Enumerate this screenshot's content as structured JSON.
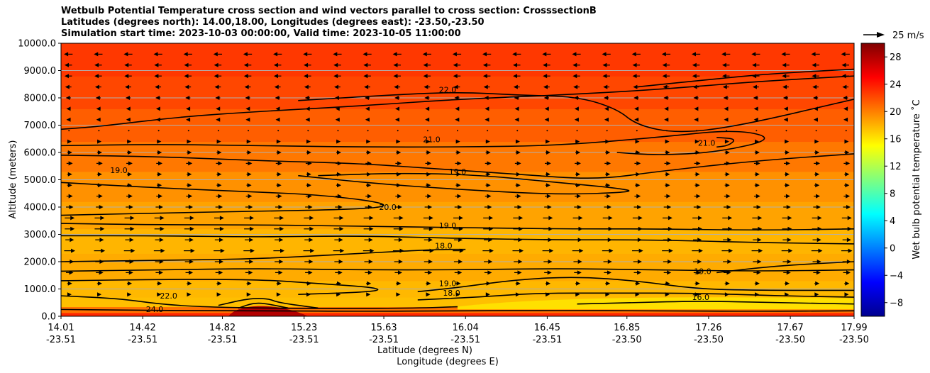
{
  "chart_data": {
    "type": "heatmap",
    "title_lines": [
      "Wetbulb Potential Temperature cross section and wind vectors parallel to cross section: CrosssectionB",
      "Latitudes (degrees north): 14.00,18.00, Longitudes (degrees east): -23.50,-23.50",
      "Simulation start time: 2023-10-03 00:00:00, Valid time: 2023-10-05 11:00:00"
    ],
    "ylabel": "Altitude (meters)",
    "xlabel": "Latitude (degrees N)",
    "xlabel2": "Longitude (degrees E)",
    "ylim": [
      0,
      10000
    ],
    "xlim": [
      14.01,
      17.99
    ],
    "yticks": [
      {
        "v": 0,
        "label": "0.0"
      },
      {
        "v": 1000,
        "label": "1000.0"
      },
      {
        "v": 2000,
        "label": "2000.0"
      },
      {
        "v": 3000,
        "label": "3000.0"
      },
      {
        "v": 4000,
        "label": "4000.0"
      },
      {
        "v": 5000,
        "label": "5000.0"
      },
      {
        "v": 6000,
        "label": "6000.0"
      },
      {
        "v": 7000,
        "label": "7000.0"
      },
      {
        "v": 8000,
        "label": "8000.0"
      },
      {
        "v": 9000,
        "label": "9000.0"
      },
      {
        "v": 10000,
        "label": "10000.0"
      }
    ],
    "xticks": [
      {
        "v": 14.01,
        "lat": "14.01",
        "lon": "-23.51"
      },
      {
        "v": 14.42,
        "lat": "14.42",
        "lon": "-23.51"
      },
      {
        "v": 14.82,
        "lat": "14.82",
        "lon": "-23.51"
      },
      {
        "v": 15.23,
        "lat": "15.23",
        "lon": "-23.51"
      },
      {
        "v": 15.63,
        "lat": "15.63",
        "lon": "-23.51"
      },
      {
        "v": 16.04,
        "lat": "16.04",
        "lon": "-23.51"
      },
      {
        "v": 16.45,
        "lat": "16.45",
        "lon": "-23.51"
      },
      {
        "v": 16.85,
        "lat": "16.85",
        "lon": "-23.50"
      },
      {
        "v": 17.26,
        "lat": "17.26",
        "lon": "-23.50"
      },
      {
        "v": 17.67,
        "lat": "17.67",
        "lon": "-23.50"
      },
      {
        "v": 17.99,
        "lat": "17.99",
        "lon": "-23.50"
      }
    ],
    "grid": "horizontal",
    "colorbar": {
      "label": "Wet bulb potential temperature ˚C",
      "range": [
        -10,
        30
      ],
      "ticks": [
        {
          "v": 28,
          "label": "28"
        },
        {
          "v": 24,
          "label": "24"
        },
        {
          "v": 20,
          "label": "20"
        },
        {
          "v": 16,
          "label": "16"
        },
        {
          "v": 12,
          "label": "12"
        },
        {
          "v": 8,
          "label": "8"
        },
        {
          "v": 4,
          "label": "4"
        },
        {
          "v": 0,
          "label": "0"
        },
        {
          "v": -4,
          "label": "−4"
        },
        {
          "v": -8,
          "label": "−8"
        }
      ]
    },
    "quiver_key": "25 m/s",
    "field_bands": [
      {
        "value": 23.5,
        "y0": 0,
        "y1": 130
      },
      {
        "value": 20.5,
        "y0": 130,
        "y1": 350
      },
      {
        "value": 17.5,
        "y0": 350,
        "y1": 700
      },
      {
        "value": 17.8,
        "y0": 700,
        "y1": 1300
      },
      {
        "value": 18.3,
        "y0": 1300,
        "y1": 2300
      },
      {
        "value": 17.9,
        "y0": 2300,
        "y1": 3200
      },
      {
        "value": 18.6,
        "y0": 3200,
        "y1": 4200
      },
      {
        "value": 19.3,
        "y0": 4200,
        "y1": 5300
      },
      {
        "value": 20.3,
        "y0": 5300,
        "y1": 6400
      },
      {
        "value": 21.3,
        "y0": 6400,
        "y1": 7600
      },
      {
        "value": 22.2,
        "y0": 7600,
        "y1": 8800
      },
      {
        "value": 22.8,
        "y0": 8800,
        "y1": 10000
      }
    ],
    "contours": [
      {
        "label": "",
        "points": [
          [
            14.01,
            6850
          ],
          [
            14.2,
            6950
          ],
          [
            14.6,
            7300
          ],
          [
            15.0,
            7500
          ],
          [
            15.5,
            7700
          ],
          [
            16.0,
            7950
          ],
          [
            16.5,
            8100
          ],
          [
            17.0,
            8300
          ],
          [
            17.5,
            8600
          ],
          [
            17.99,
            8800
          ]
        ]
      },
      {
        "label": "22.0",
        "label_at": [
          15.95,
          8200
        ],
        "points": [
          [
            15.2,
            7900
          ],
          [
            15.6,
            8080
          ],
          [
            16.0,
            8220
          ],
          [
            16.3,
            8100
          ],
          [
            16.6,
            8050
          ],
          [
            16.8,
            7600
          ],
          [
            16.9,
            7000
          ],
          [
            17.1,
            6700
          ],
          [
            17.4,
            6950
          ],
          [
            17.99,
            7950
          ]
        ]
      },
      {
        "label": "",
        "points": [
          [
            16.9,
            8400
          ],
          [
            17.3,
            8700
          ],
          [
            17.6,
            8900
          ],
          [
            17.99,
            9050
          ]
        ]
      },
      {
        "label": "21.0",
        "label_at": [
          15.87,
          6380
        ],
        "points": [
          [
            14.01,
            6250
          ],
          [
            14.5,
            6300
          ],
          [
            15.0,
            6250
          ],
          [
            15.5,
            6200
          ],
          [
            16.0,
            6200
          ],
          [
            16.5,
            6250
          ],
          [
            17.0,
            6550
          ],
          [
            17.4,
            6850
          ],
          [
            17.6,
            6500
          ],
          [
            17.3,
            6000
          ],
          [
            17.0,
            5900
          ],
          [
            16.8,
            6000
          ]
        ]
      },
      {
        "label": "21.0",
        "label_at": [
          17.25,
          6250
        ],
        "points": [
          [
            17.3,
            6200
          ],
          [
            17.36,
            6250
          ],
          [
            17.4,
            6500
          ],
          [
            17.3,
            6550
          ]
        ]
      },
      {
        "label": "19.0",
        "label_at": [
          14.3,
          5250
        ],
        "points": [
          [
            14.01,
            5900
          ],
          [
            14.5,
            5850
          ],
          [
            15.0,
            5700
          ],
          [
            15.5,
            5600
          ],
          [
            15.9,
            5400
          ],
          [
            16.3,
            5200
          ],
          [
            16.7,
            5000
          ],
          [
            17.0,
            5300
          ],
          [
            17.5,
            5700
          ],
          [
            17.99,
            5950
          ]
        ]
      },
      {
        "label": "19.0",
        "label_at": [
          16.0,
          5200
        ],
        "points": [
          [
            15.3,
            5150
          ],
          [
            15.7,
            5250
          ],
          [
            16.1,
            5180
          ],
          [
            16.5,
            4900
          ],
          [
            16.8,
            4700
          ],
          [
            16.9,
            4550
          ],
          [
            16.5,
            4450
          ],
          [
            16.0,
            4650
          ],
          [
            15.6,
            4850
          ],
          [
            15.2,
            5150
          ]
        ]
      },
      {
        "label": "20.0",
        "label_at": [
          15.65,
          3900
        ],
        "points": [
          [
            14.01,
            4900
          ],
          [
            14.5,
            4700
          ],
          [
            15.0,
            4550
          ],
          [
            15.3,
            4450
          ],
          [
            15.6,
            4200
          ],
          [
            15.65,
            4000
          ],
          [
            15.4,
            3900
          ],
          [
            15.0,
            3850
          ],
          [
            14.5,
            3780
          ],
          [
            14.01,
            3700
          ]
        ]
      },
      {
        "label": "19.0",
        "label_at": [
          15.95,
          3220
        ],
        "points": [
          [
            14.01,
            3400
          ],
          [
            14.5,
            3350
          ],
          [
            15.0,
            3350
          ],
          [
            15.5,
            3300
          ],
          [
            16.0,
            3250
          ],
          [
            16.5,
            3200
          ],
          [
            17.0,
            3200
          ],
          [
            17.5,
            3150
          ],
          [
            17.99,
            3200
          ]
        ]
      },
      {
        "label": "",
        "points": [
          [
            14.01,
            2950
          ],
          [
            14.5,
            2950
          ],
          [
            15.0,
            2900
          ],
          [
            15.5,
            2950
          ],
          [
            16.0,
            2850
          ],
          [
            16.5,
            2800
          ],
          [
            17.0,
            2800
          ],
          [
            17.5,
            2700
          ],
          [
            17.99,
            2650
          ]
        ]
      },
      {
        "label": "18.0",
        "label_at": [
          15.93,
          2480
        ],
        "points": [
          [
            14.01,
            2000
          ],
          [
            14.5,
            2050
          ],
          [
            15.0,
            2100
          ],
          [
            15.5,
            2300
          ],
          [
            15.9,
            2450
          ],
          [
            16.04,
            2450
          ]
        ]
      },
      {
        "label": "",
        "points": [
          [
            14.01,
            1650
          ],
          [
            14.5,
            1700
          ],
          [
            15.0,
            1750
          ],
          [
            15.5,
            1700
          ],
          [
            16.0,
            1700
          ],
          [
            16.5,
            1750
          ],
          [
            17.0,
            1700
          ],
          [
            17.5,
            1650
          ],
          [
            17.99,
            1700
          ]
        ]
      },
      {
        "label": "",
        "points": [
          [
            14.01,
            1300
          ],
          [
            14.5,
            1350
          ],
          [
            15.0,
            1350
          ],
          [
            15.3,
            1200
          ],
          [
            15.6,
            1050
          ],
          [
            15.6,
            900
          ],
          [
            15.2,
            800
          ]
        ]
      },
      {
        "label": "19.0",
        "label_at": [
          17.23,
          1550
        ],
        "points": [
          [
            17.3,
            1600
          ],
          [
            17.6,
            1850
          ],
          [
            17.99,
            2000
          ]
        ]
      },
      {
        "label": "19.0",
        "label_at": [
          15.95,
          1100
        ],
        "points": [
          [
            15.8,
            900
          ],
          [
            16.0,
            1050
          ],
          [
            16.3,
            1350
          ],
          [
            16.6,
            1450
          ],
          [
            16.9,
            1300
          ],
          [
            17.2,
            1000
          ],
          [
            17.5,
            950
          ],
          [
            17.99,
            950
          ]
        ]
      },
      {
        "label": "18.0",
        "label_at": [
          15.97,
          750
        ],
        "points": [
          [
            15.8,
            600
          ],
          [
            16.1,
            700
          ],
          [
            16.4,
            850
          ],
          [
            16.8,
            850
          ],
          [
            17.2,
            850
          ],
          [
            17.6,
            750
          ],
          [
            17.99,
            700
          ]
        ]
      },
      {
        "label": "16.0",
        "label_at": [
          17.22,
          600
        ],
        "points": [
          [
            16.6,
            450
          ],
          [
            16.9,
            500
          ],
          [
            17.2,
            560
          ],
          [
            17.6,
            500
          ],
          [
            17.99,
            450
          ]
        ]
      },
      {
        "label": "22.0",
        "label_at": [
          14.55,
          650
        ],
        "points": [
          [
            14.01,
            750
          ],
          [
            14.3,
            650
          ],
          [
            14.5,
            450
          ],
          [
            14.7,
            350
          ],
          [
            15.0,
            300
          ],
          [
            15.4,
            280
          ],
          [
            15.8,
            300
          ],
          [
            16.0,
            350
          ]
        ]
      },
      {
        "label": "24.0",
        "label_at": [
          14.48,
          150
        ],
        "points": [
          [
            14.01,
            250
          ],
          [
            14.4,
            220
          ],
          [
            14.8,
            200
          ],
          [
            15.1,
            200
          ],
          [
            15.5,
            180
          ],
          [
            16.0,
            200
          ],
          [
            16.5,
            210
          ],
          [
            17.0,
            200
          ],
          [
            17.5,
            180
          ],
          [
            17.99,
            200
          ]
        ]
      },
      {
        "label": "",
        "points": [
          [
            14.8,
            400
          ],
          [
            14.95,
            650
          ],
          [
            15.05,
            650
          ],
          [
            15.1,
            500
          ],
          [
            15.3,
            300
          ]
        ]
      },
      {
        "label": "",
        "points": [
          [
            14.9,
            300
          ],
          [
            14.98,
            500
          ],
          [
            15.05,
            450
          ],
          [
            15.15,
            300
          ]
        ]
      }
    ],
    "wind": {
      "x": [
        14.05,
        14.2,
        14.35,
        14.5,
        14.65,
        14.8,
        14.95,
        15.1,
        15.25,
        15.4,
        15.55,
        15.7,
        15.85,
        16.0,
        16.15,
        16.3,
        16.45,
        16.6,
        16.75,
        16.9,
        17.05,
        17.2,
        17.35,
        17.5,
        17.65,
        17.8,
        17.95
      ],
      "levels": [
        {
          "z": 9600,
          "u": -6
        },
        {
          "z": 9200,
          "u": -5
        },
        {
          "z": 8800,
          "u": -5
        },
        {
          "z": 8400,
          "u": -4
        },
        {
          "z": 8000,
          "u": -3
        },
        {
          "z": 7600,
          "u": -2
        },
        {
          "z": 7200,
          "u": -2
        },
        {
          "z": 6800,
          "u": 0
        },
        {
          "z": 6400,
          "u": 2
        },
        {
          "z": 6000,
          "u": 3
        },
        {
          "z": 5600,
          "u": 4
        },
        {
          "z": 5200,
          "u": 3
        },
        {
          "z": 4800,
          "u": 3
        },
        {
          "z": 4400,
          "u": 4
        },
        {
          "z": 4000,
          "u": 5
        },
        {
          "z": 3600,
          "u": 7
        },
        {
          "z": 3200,
          "u": 7
        },
        {
          "z": 2800,
          "u": 6
        },
        {
          "z": 2400,
          "u": 8
        },
        {
          "z": 2000,
          "u": 6
        },
        {
          "z": 1600,
          "u": 5
        },
        {
          "z": 1200,
          "u": 3
        },
        {
          "z": 800,
          "u": 2
        }
      ]
    }
  }
}
